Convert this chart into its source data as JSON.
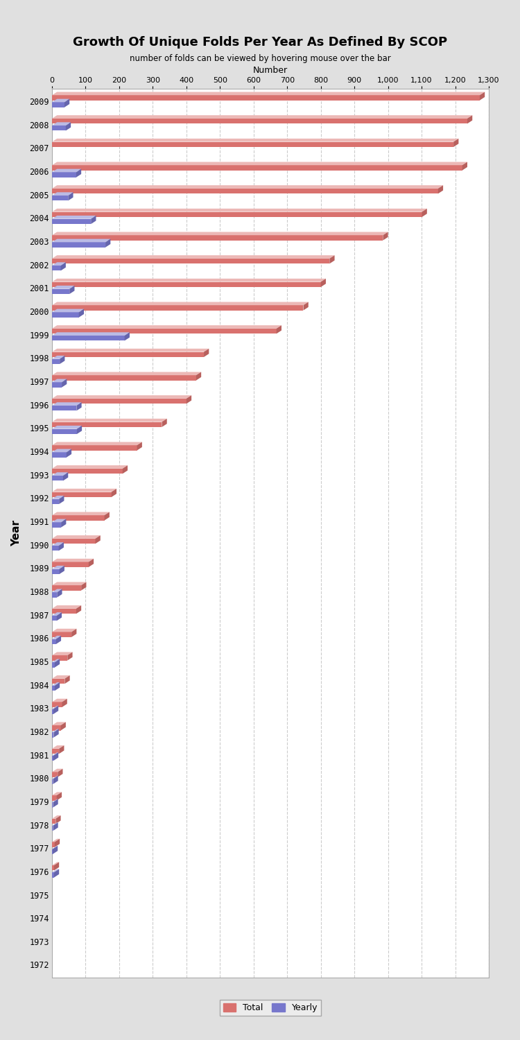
{
  "title": "Growth Of Unique Folds Per Year As Defined By SCOP",
  "subtitle": "number of folds can be viewed by hovering mouse over the bar",
  "xlabel": "Number",
  "ylabel": "Year",
  "years": [
    2009,
    2008,
    2007,
    2006,
    2005,
    2004,
    2003,
    2002,
    2001,
    2000,
    1999,
    1998,
    1997,
    1996,
    1995,
    1994,
    1993,
    1992,
    1991,
    1990,
    1989,
    1988,
    1987,
    1986,
    1985,
    1984,
    1983,
    1982,
    1981,
    1980,
    1979,
    1978,
    1977,
    1976,
    1975,
    1974,
    1973,
    1972
  ],
  "total": [
    1273,
    1236,
    1195,
    1221,
    1149,
    1101,
    985,
    826,
    800,
    748,
    668,
    452,
    429,
    400,
    327,
    253,
    210,
    177,
    156,
    129,
    109,
    87,
    72,
    58,
    46,
    38,
    30,
    26,
    21,
    17,
    14,
    11,
    8,
    6,
    0,
    0,
    0,
    0
  ],
  "yearly": [
    37,
    41,
    0,
    72,
    48,
    116,
    159,
    26,
    52,
    80,
    216,
    23,
    29,
    73,
    74,
    43,
    33,
    21,
    27,
    20,
    22,
    15,
    14,
    12,
    8,
    8,
    4,
    5,
    4,
    3,
    3,
    3,
    2,
    6,
    0,
    0,
    0,
    0
  ],
  "bar_color_total": "#d9716e",
  "bar_color_yearly": "#7777cc",
  "bar_shadow_total": "#c0a0a0",
  "bar_shadow_yearly": "#aaaadd",
  "bg_color": "#e0e0e0",
  "plot_bg_color": "#ffffff",
  "grid_color": "#cccccc",
  "xlim": [
    0,
    1300
  ],
  "xticks": [
    0,
    100,
    200,
    300,
    400,
    500,
    600,
    700,
    800,
    900,
    1000,
    1100,
    1200,
    1300
  ]
}
